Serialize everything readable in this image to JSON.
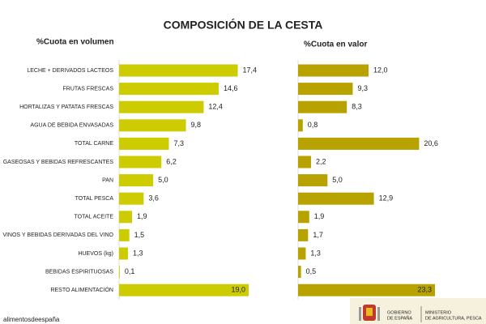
{
  "title": "COMPOSICIÓN DE LA CESTA",
  "chart_data": [
    {
      "type": "bar",
      "title": "%Cuota en volumen",
      "categories": [
        "LECHE + DERIVADOS LACTEOS",
        "FRUTAS FRESCAS",
        "HORTALIZAS Y PATATAS FRESCAS",
        "AGUA DE BEBIDA ENVASADAS",
        "TOTAL CARNE",
        "GASEOSAS Y BEBIDAS REFRESCANTES",
        "PAN",
        "TOTAL PESCA",
        "TOTAL ACEITE",
        "VINOS Y BEBIDAS DERIVADAS DEL VINO",
        "HUEVOS (kg)",
        "BEBIDAS ESPIRITUOSAS",
        "RESTO ALIMENTACIÓN"
      ],
      "values": [
        17.4,
        14.6,
        12.4,
        9.8,
        7.3,
        6.2,
        5.0,
        3.6,
        1.9,
        1.5,
        1.3,
        0.1,
        19.0
      ],
      "value_labels": [
        "17,4",
        "14,6",
        "12,4",
        "9,8",
        "7,3",
        "6,2",
        "5,0",
        "3,6",
        "1,9",
        "1,5",
        "1,3",
        "0,1",
        "19,0"
      ],
      "color": "#cccc00"
    },
    {
      "type": "bar",
      "title": "%Cuota en valor",
      "values": [
        12.0,
        9.3,
        8.3,
        0.8,
        20.6,
        2.2,
        5.0,
        12.9,
        1.9,
        1.7,
        1.3,
        0.5,
        23.3
      ],
      "value_labels": [
        "12,0",
        "9,3",
        "8,3",
        "0,8",
        "20,6",
        "2,2",
        "5,0",
        "12,9",
        "1,9",
        "1,7",
        "1,3",
        "0,5",
        "23,3"
      ],
      "color": "#b8a200"
    }
  ],
  "footer": {
    "brand": "alimentosdeespaña",
    "government": [
      "GOBIERNO",
      "DE ESPAÑA"
    ],
    "ministry": [
      "MINISTERIO",
      "DE AGRICULTURA, PESCA"
    ]
  }
}
